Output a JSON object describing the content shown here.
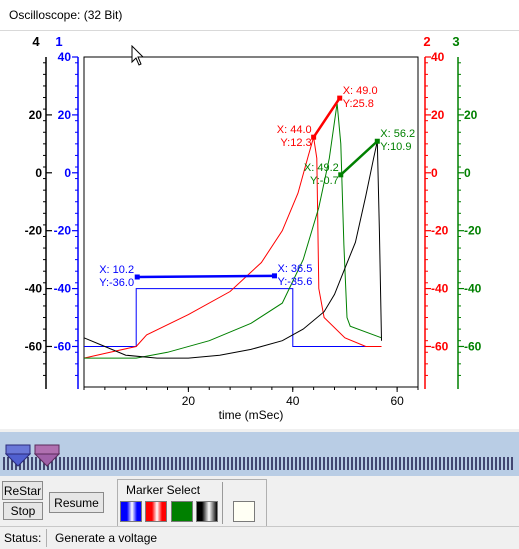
{
  "window": {
    "title": "Oscilloscope:  (32 Bit)"
  },
  "colors": {
    "axis1": "#0000ff",
    "axis2": "#ff0000",
    "axis3": "#008000",
    "axis4": "#000000",
    "marker_line": "#0000ff"
  },
  "chart_data": {
    "type": "line",
    "xlabel": "time (mSec)",
    "xlim": [
      0,
      64
    ],
    "x_ticks": [
      20,
      40,
      60
    ],
    "axes": [
      {
        "id": "4",
        "label": "4",
        "color": "#000000",
        "side": "left",
        "ylim": [
          -74,
          40
        ],
        "ticks": []
      },
      {
        "id": "1",
        "label": "1",
        "color": "#0000ff",
        "side": "left",
        "ylim": [
          -74,
          40
        ],
        "ticks": [
          40,
          20,
          0,
          -20,
          -40,
          -60
        ]
      },
      {
        "id": "2",
        "label": "2",
        "color": "#ff0000",
        "side": "right",
        "ylim": [
          -74,
          40
        ],
        "ticks": [
          40,
          20,
          0,
          -20,
          -40,
          -60
        ]
      },
      {
        "id": "3",
        "label": "3",
        "color": "#008000",
        "side": "right",
        "ylim": [
          -74,
          40
        ],
        "ticks": [
          20,
          0,
          -20,
          -40,
          -60
        ]
      }
    ],
    "tick_labels_left": [
      "20",
      "0",
      "-20",
      "-40",
      "-60"
    ],
    "tick_labels_blue": [
      "40",
      "20",
      "0",
      "-20",
      "-40",
      "-60"
    ],
    "series": [
      {
        "color": "#0000ff",
        "style": "solid",
        "x": [
          0,
          10,
          10,
          40,
          40,
          57
        ],
        "y": [
          -60,
          -60,
          -40,
          -40,
          -60,
          -60
        ]
      },
      {
        "color": "#0000ff",
        "style": "dashdot",
        "x": [
          40,
          57
        ],
        "y": [
          -60,
          -60
        ]
      },
      {
        "color": "#ff0000",
        "style": "solid",
        "x": [
          0,
          5,
          10,
          12,
          20,
          28,
          34,
          38,
          41,
          43,
          44,
          44.6,
          45,
          46,
          50,
          54,
          57
        ],
        "y": [
          -64,
          -62,
          -60,
          -56,
          -49,
          -41,
          -31,
          -20,
          -7,
          6,
          12.3,
          5,
          -40,
          -50,
          -57,
          -60,
          -60
        ]
      },
      {
        "color": "#008000",
        "style": "solid",
        "x": [
          0,
          10,
          16,
          24,
          32,
          38,
          42,
          45,
          47,
          48.5,
          49.2,
          49.8,
          50.4,
          51,
          57
        ],
        "y": [
          -64,
          -64,
          -62,
          -58,
          -52,
          -45,
          -30,
          -12,
          5,
          24,
          10,
          -25,
          -50,
          -53,
          -57
        ]
      },
      {
        "color": "#000000",
        "style": "solid",
        "x": [
          0,
          4,
          8,
          14,
          20,
          26,
          32,
          38,
          42,
          46,
          48,
          50,
          52,
          54,
          55.5,
          56.2,
          56.6,
          57
        ],
        "y": [
          -57,
          -60,
          -63,
          -64,
          -64,
          -63,
          -61,
          -58,
          -54,
          -48,
          -42,
          -33,
          -24,
          -8,
          5,
          10.9,
          -20,
          -58
        ]
      }
    ],
    "marker_lines": [
      {
        "color": "#0000ff",
        "x": [
          10.2,
          36.5
        ],
        "y": [
          -36.0,
          -35.6
        ]
      },
      {
        "color": "#ff0000",
        "x": [
          44.0,
          49.0
        ],
        "y": [
          12.3,
          25.8
        ]
      },
      {
        "color": "#008000",
        "x": [
          49.2,
          56.2
        ],
        "y": [
          -0.7,
          10.9
        ]
      }
    ],
    "annotations": [
      {
        "color": "#0000ff",
        "x": 10.2,
        "y": -36.0,
        "lines": [
          "X: 10.2",
          "Y:-36.0"
        ],
        "anchor": "left"
      },
      {
        "color": "#0000ff",
        "x": 36.5,
        "y": -35.6,
        "lines": [
          "X: 36.5",
          "Y:-35.6"
        ],
        "anchor": "right"
      },
      {
        "color": "#ff0000",
        "x": 44.0,
        "y": 12.3,
        "lines": [
          "X: 44.0",
          "Y:12.3"
        ],
        "anchor": "left"
      },
      {
        "color": "#ff0000",
        "x": 49.0,
        "y": 25.8,
        "lines": [
          "X: 49.0",
          "Y:25.8"
        ],
        "anchor": "right"
      },
      {
        "color": "#008000",
        "x": 49.2,
        "y": -0.7,
        "lines": [
          "X: 49.2",
          "Y:-0.7"
        ],
        "anchor": "left"
      },
      {
        "color": "#008000",
        "x": 56.2,
        "y": 10.9,
        "lines": [
          "X: 56.2",
          "Y:10.9"
        ],
        "anchor": "right"
      }
    ]
  },
  "controls": {
    "restart_label": "ReStar",
    "stop_label": "Stop",
    "resume_label": "Resume",
    "marker_select_label": "Marker Select"
  },
  "status": {
    "label": "Status:",
    "text": "Generate a voltage"
  }
}
